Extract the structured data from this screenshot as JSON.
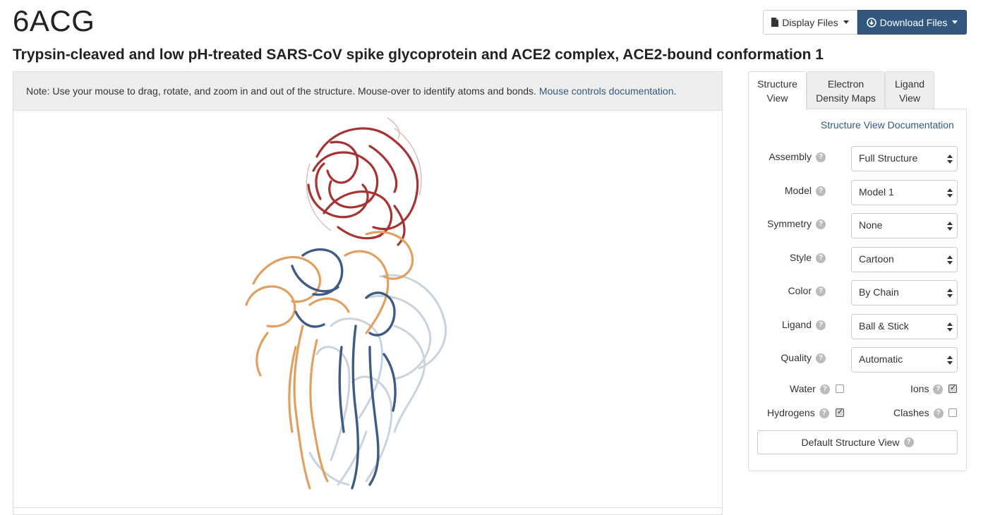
{
  "entry": {
    "id": "6ACG",
    "title": "Trypsin-cleaved and low pH-treated SARS-CoV spike glycoprotein and ACE2 complex, ACE2-bound conformation 1"
  },
  "header_buttons": {
    "display_files": "Display Files",
    "download_files": "Download Files"
  },
  "viewer": {
    "note": "Note: Use your mouse to drag, rotate, and zoom in and out of the structure. Mouse-over to identify atoms and bonds.",
    "note_link": "Mouse controls documentation",
    "note_suffix": "."
  },
  "tabs": [
    {
      "line1": "Structure",
      "line2": "View",
      "active": true
    },
    {
      "line1": "Electron",
      "line2": "Density Maps",
      "active": false
    },
    {
      "line1": "Ligand",
      "line2": "View",
      "active": false
    }
  ],
  "side_panel": {
    "doc_link": "Structure View Documentation",
    "help_glyph": "?",
    "selects": [
      {
        "label": "Assembly",
        "value": "Full Structure"
      },
      {
        "label": "Model",
        "value": "Model 1"
      },
      {
        "label": "Symmetry",
        "value": "None"
      },
      {
        "label": "Style",
        "value": "Cartoon"
      },
      {
        "label": "Color",
        "value": "By Chain"
      },
      {
        "label": "Ligand",
        "value": "Ball & Stick"
      },
      {
        "label": "Quality",
        "value": "Automatic"
      }
    ],
    "checkboxes": [
      {
        "label": "Water",
        "checked": false
      },
      {
        "label": "Ions",
        "checked": true
      },
      {
        "label": "Hydrogens",
        "checked": true
      },
      {
        "label": "Clashes",
        "checked": false
      }
    ],
    "default_button": "Default Structure View"
  },
  "colors": {
    "brand_dark_blue": "#325880",
    "chain_red": "#a83232",
    "chain_orange": "#e0a060",
    "chain_navy": "#3e5a85",
    "chain_light": "#c9d3dd"
  }
}
